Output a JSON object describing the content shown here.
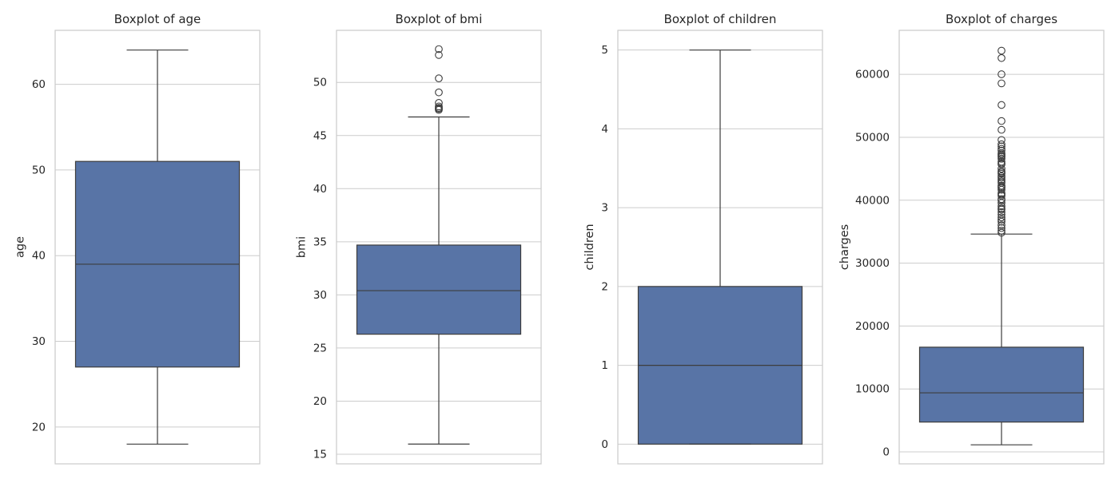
{
  "style": {
    "box_color": "#5874a6",
    "line_color": "#3d3d3d",
    "grid_color": "#cccccc",
    "spine_color": "#cccccc"
  },
  "chart_data": [
    {
      "type": "boxplot",
      "title": "Boxplot of age",
      "ylabel": "age",
      "ylim": [
        15.7,
        66.3
      ],
      "yticks": [
        20,
        30,
        40,
        50,
        60
      ],
      "ytick_labels": [
        "20",
        "30",
        "40",
        "50",
        "60"
      ],
      "grid": true,
      "stats": {
        "whisker_low": 18,
        "q1": 27,
        "median": 39,
        "q3": 51,
        "whisker_high": 64
      },
      "outliers": []
    },
    {
      "type": "boxplot",
      "title": "Boxplot of bmi",
      "ylabel": "bmi",
      "ylim": [
        14.1,
        54.9
      ],
      "yticks": [
        15,
        20,
        25,
        30,
        35,
        40,
        45,
        50
      ],
      "ytick_labels": [
        "15",
        "20",
        "25",
        "30",
        "35",
        "40",
        "45",
        "50"
      ],
      "grid": true,
      "stats": {
        "whisker_low": 15.96,
        "q1": 26.3,
        "median": 30.4,
        "q3": 34.69,
        "whisker_high": 46.75
      },
      "outliers": [
        47.41,
        47.52,
        47.6,
        47.74,
        48.07,
        49.06,
        50.38,
        52.58,
        53.13
      ]
    },
    {
      "type": "boxplot",
      "title": "Boxplot of children",
      "ylabel": "children",
      "ylim": [
        -0.25,
        5.25
      ],
      "yticks": [
        0,
        1,
        2,
        3,
        4,
        5
      ],
      "ytick_labels": [
        "0",
        "1",
        "2",
        "3",
        "4",
        "5"
      ],
      "grid": true,
      "stats": {
        "whisker_low": 0,
        "q1": 0,
        "median": 1,
        "q3": 2,
        "whisker_high": 5
      },
      "outliers": []
    },
    {
      "type": "boxplot",
      "title": "Boxplot of charges",
      "ylabel": "charges",
      "ylim": [
        -1900,
        67000
      ],
      "yticks": [
        0,
        10000,
        20000,
        30000,
        40000,
        50000,
        60000
      ],
      "ytick_labels": [
        "0",
        "10000",
        "20000",
        "30000",
        "40000",
        "50000",
        "60000"
      ],
      "grid": true,
      "stats": {
        "whisker_low": 1121.87,
        "q1": 4740.29,
        "median": 9382.03,
        "q3": 16639.91,
        "whisker_high": 34617.84
      },
      "outliers": [
        34838,
        35160,
        35585,
        36021,
        36580,
        36910,
        37270,
        37742,
        38126,
        38511,
        38709,
        39047,
        39597,
        39983,
        40182,
        40720,
        40904,
        41097,
        41661,
        41949,
        42112,
        42303,
        42760,
        42983,
        43254,
        43578,
        43813,
        44202,
        44400,
        44585,
        45008,
        45702,
        45863,
        46113,
        46599,
        46889,
        47055,
        47269,
        47462,
        47896,
        48173,
        48549,
        48885,
        49577,
        51194,
        52590,
        55135,
        58571,
        60021,
        62593,
        63770
      ]
    }
  ]
}
